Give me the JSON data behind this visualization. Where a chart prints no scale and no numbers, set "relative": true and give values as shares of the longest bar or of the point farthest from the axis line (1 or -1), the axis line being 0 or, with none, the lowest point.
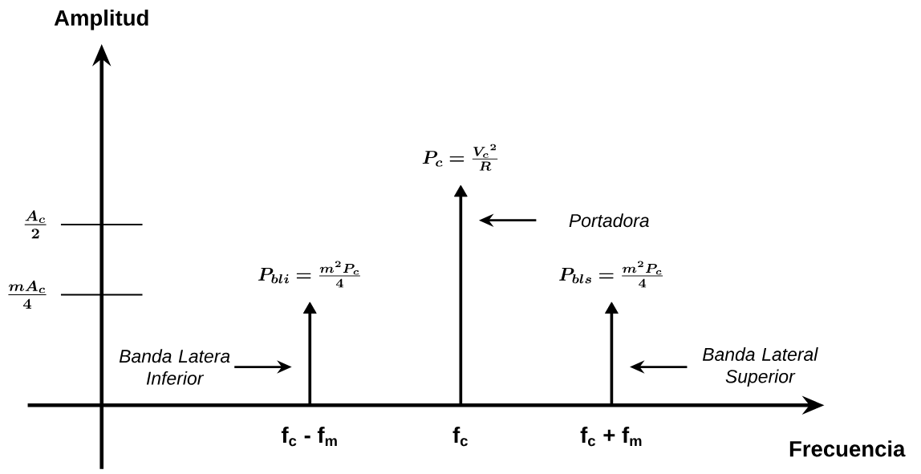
{
  "chart_data": {
    "type": "lollipop",
    "xlabel": "Frecuencia",
    "relative": true,
    "categories": [
      "f$_{c}$ - f$_{m}$",
      "f$_{c}$",
      "f$_{c}$ + f$_{m}$"
    ],
    "values": [
      0.45,
      1,
      0.45
    ],
    "color": "#000000",
    "marker": "triangle",
    "annotations": [
      "\\bm{\\frac{A_c}{2}}",
      "\\bm{\\frac{mA_c}{4}}",
      "\\bm{P_c = \\frac{{V_c}^{2}}{R}}",
      "\\bm{P_{bli} = \\frac{m^{2}P_c}{4}}",
      "\\bm{P_{bls} = \\frac{m^{2}P_c}{4}}",
      "Portadora",
      "Banda Latera Inferior",
      "Banda Lateral Superior",
      "Amplitud"
    ]
  }
}
